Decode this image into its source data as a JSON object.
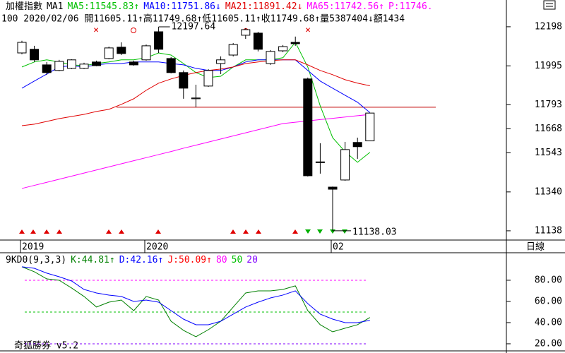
{
  "chart_data": [
    {
      "type": "candlestick",
      "title": "加權指數",
      "subtitle": "MA1",
      "info": "100 2020/02/06 開11605.11↑高11749.68↑低11605.11↑收11749.68↑量5387404↓額1434",
      "categories": [
        "2019",
        null,
        null,
        null,
        null,
        null,
        null,
        null,
        null,
        null,
        "2020",
        null,
        null,
        null,
        null,
        null,
        null,
        null,
        null,
        null,
        null,
        null,
        null,
        null,
        null,
        "02",
        null,
        null,
        null
      ],
      "open": [
        12062,
        12081,
        12000,
        11971,
        11982,
        11982,
        12015,
        12033,
        12092,
        12015,
        12026,
        12172,
        12033,
        11960,
        11824,
        11890,
        12007,
        12051,
        12154,
        12165,
        12007,
        12073,
        12117,
        11927,
        11496,
        11365,
        11402,
        11597,
        11605.11
      ],
      "high": [
        12125,
        12099,
        12015,
        12026,
        12029,
        12011,
        12022,
        12095,
        12117,
        12022,
        12106,
        12197.64,
        12040,
        11971,
        11897,
        11978,
        12044,
        12113,
        12191,
        12172,
        12077,
        12103,
        12147,
        11934,
        11593,
        11368,
        11600,
        11622,
        11749.68
      ],
      "low": [
        12055,
        12015,
        11949,
        11967,
        11978,
        11978,
        11993,
        12029,
        12051,
        11996,
        12022,
        12062,
        11956,
        11824,
        11780,
        11886,
        11952,
        12044,
        12135,
        12070,
        12000,
        12066,
        12099,
        11420,
        11435,
        11138.03,
        11398,
        11512,
        11605.11
      ],
      "close": [
        12117,
        12026,
        11960,
        12018,
        12026,
        12004,
        11996,
        12088,
        12059,
        12000,
        12099,
        12081,
        11960,
        11879,
        11828,
        11971,
        12026,
        12106,
        12183,
        12081,
        12070,
        12095,
        12110,
        11424,
        11493,
        11354,
        11560,
        11575,
        11749.68
      ],
      "up_color": "#ffffff",
      "down_color": "#000000",
      "series": [
        {
          "name": "MA5:11545.83↑",
          "color": "#00c000",
          "values": [
            11989,
            12015,
            12026,
            12015,
            12000,
            11996,
            12007,
            12015,
            12026,
            12026,
            12037,
            12062,
            12051,
            12007,
            11960,
            11934,
            11941,
            11989,
            12026,
            12026,
            12026,
            12037,
            12117,
            11989,
            11787,
            11622,
            11549,
            11494,
            11545.83
          ]
        },
        {
          "name": "MA10:11751.86↓",
          "color": "#0000ff",
          "values": [
            11879,
            11916,
            11952,
            11989,
            11996,
            11989,
            12000,
            12007,
            12007,
            12015,
            12015,
            12015,
            12007,
            12000,
            11982,
            11971,
            11971,
            11989,
            12015,
            12026,
            12026,
            12026,
            12026,
            11971,
            11916,
            11879,
            11842,
            11806,
            11751.86
          ]
        },
        {
          "name": "MA21:11891.42↓",
          "color": "#e00000",
          "values": [
            11684,
            11692,
            11706,
            11721,
            11732,
            11743,
            11758,
            11769,
            11795,
            11824,
            11868,
            11905,
            11927,
            11945,
            11960,
            11971,
            11978,
            11989,
            12007,
            12015,
            12022,
            12026,
            12026,
            12000,
            11971,
            11949,
            11923,
            11905,
            11891.42
          ]
        },
        {
          "name": "MA65:11742.56↑",
          "color": "#ff00ff",
          "values": [
            11358,
            11374,
            11390,
            11406,
            11422,
            11438,
            11454,
            11470,
            11486,
            11502,
            11518,
            11534,
            11550,
            11567,
            11583,
            11599,
            11615,
            11631,
            11647,
            11663,
            11679,
            11695,
            11702,
            11709,
            11716,
            11722,
            11729,
            11736,
            11742.56
          ]
        }
      ],
      "extra_labels": [
        {
          "text": "P:11746.",
          "color": "#ff00ff"
        }
      ],
      "annotations": [
        "12197.64",
        "11138.03"
      ],
      "reference_line": 11780,
      "reference_color": "#c00000",
      "ylim": [
        11090,
        12271
      ],
      "yticks": [
        12198,
        11995,
        11793,
        11668,
        11543,
        11340,
        11138
      ],
      "period": "日線"
    },
    {
      "type": "line",
      "title": "9KD0(9,3,3)",
      "series": [
        {
          "name": "K:44.81↑",
          "color": "#008000",
          "values": [
            92.7,
            88,
            81.3,
            80,
            72.7,
            64.7,
            54.7,
            59.3,
            61.3,
            51.3,
            64.7,
            61.3,
            41.3,
            32.7,
            26.7,
            33.3,
            41.3,
            54.7,
            68,
            70,
            70,
            71.3,
            74.7,
            51.3,
            38,
            31.3,
            34.7,
            38,
            44.81
          ]
        },
        {
          "name": "D:42.16↑",
          "color": "#0000ff",
          "values": [
            92.7,
            91.3,
            86.7,
            83.3,
            79.3,
            71.3,
            68,
            66,
            64.7,
            60,
            61.3,
            59.3,
            51.3,
            43.3,
            38,
            38,
            41.3,
            48,
            54.7,
            59.3,
            63.3,
            66,
            70,
            58,
            48,
            43.3,
            40,
            40,
            42.16
          ]
        }
      ],
      "extra_labels": [
        {
          "text": "J:50.09↑",
          "color": "#ff0000"
        }
      ],
      "hlines": [
        80,
        50,
        20
      ],
      "hline_colors": [
        "#ff00ff",
        "#00c000",
        "#8000ff"
      ],
      "ylim": [
        13.3,
        103.3
      ],
      "yticks": [
        {
          "value": 80,
          "label": "80.00"
        },
        {
          "value": 60,
          "label": "60.00"
        },
        {
          "value": 40,
          "label": "40.00"
        },
        {
          "value": 20,
          "label": "20.00"
        }
      ]
    }
  ],
  "footer": "奇狐勝券 v5.2"
}
